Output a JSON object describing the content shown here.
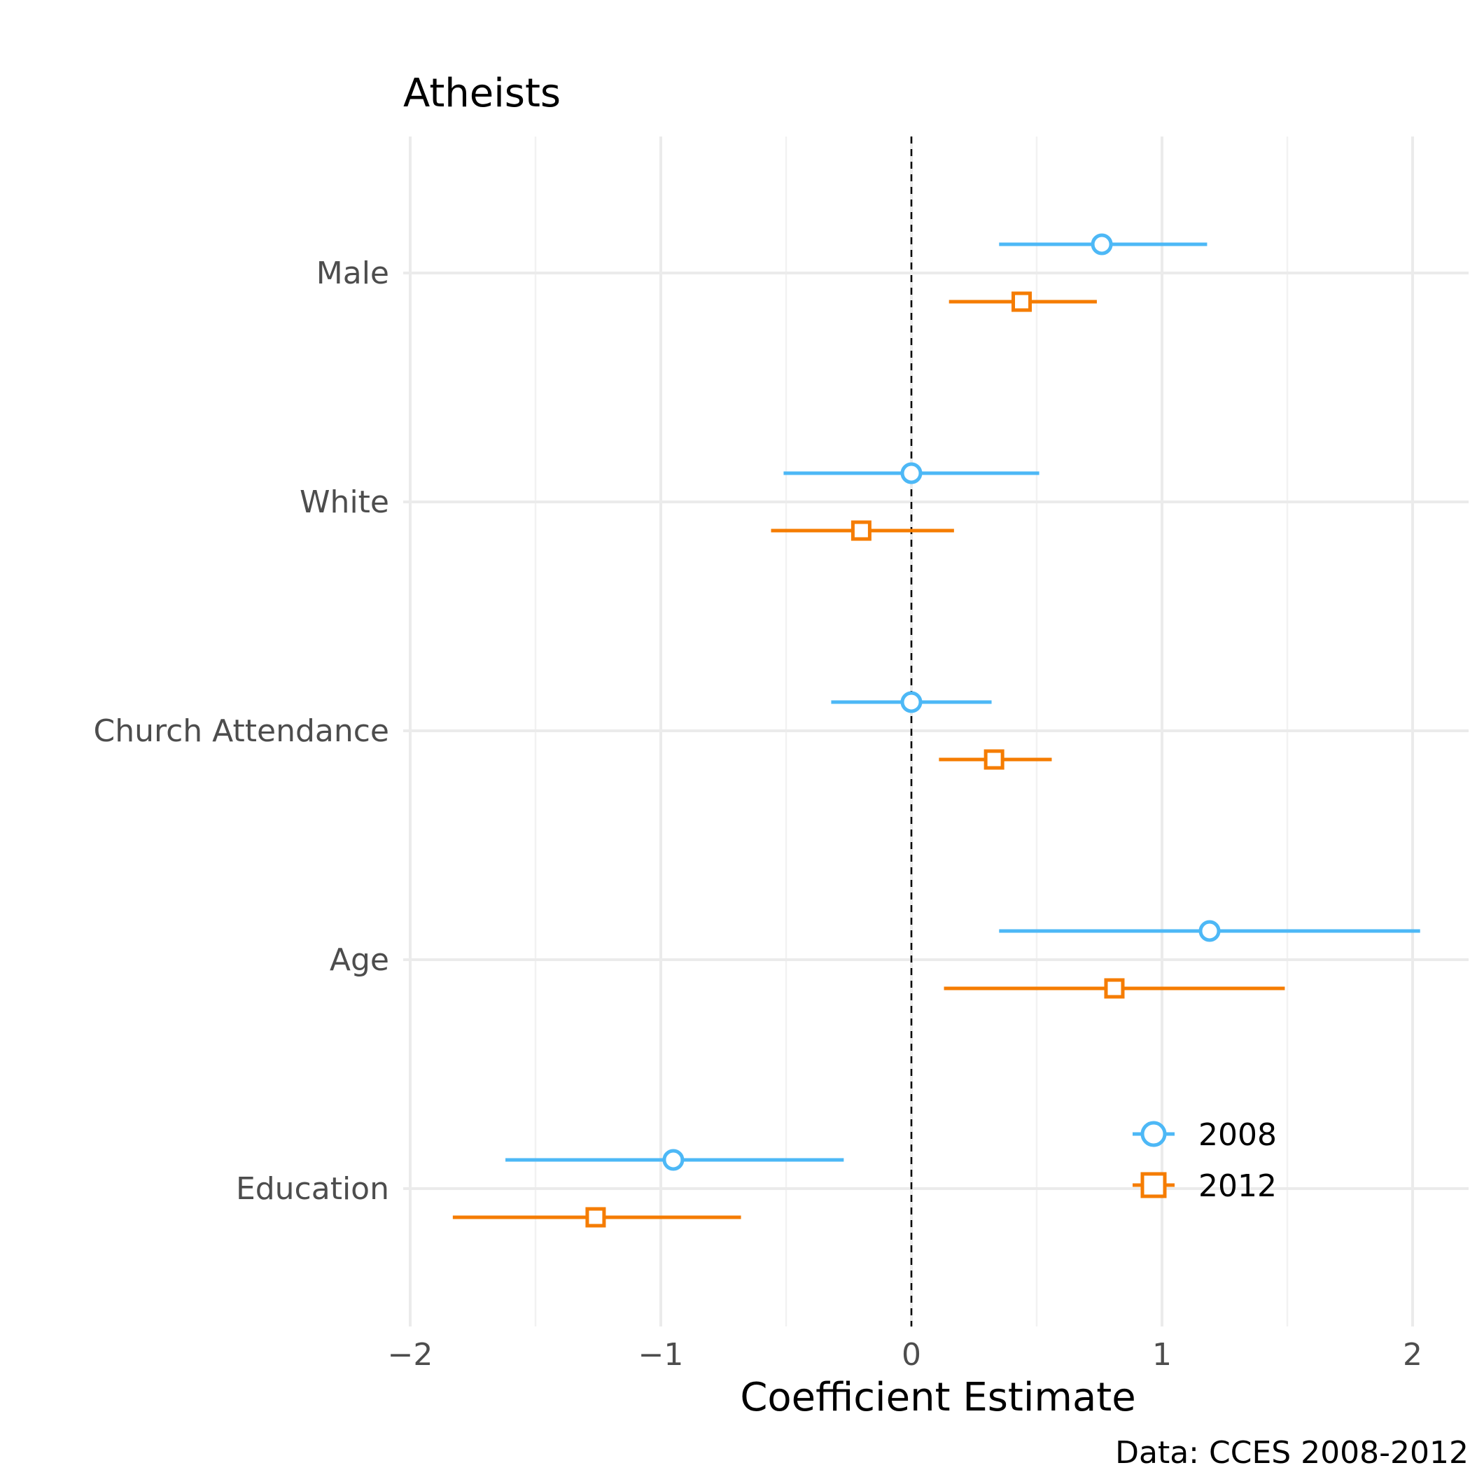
{
  "chart_data": {
    "type": "scatter",
    "title": "Atheists",
    "xlabel": "Coefficient Estimate",
    "ylabel": "",
    "caption": "Data: CCES 2008-2012",
    "xlim": [
      -2,
      2.2
    ],
    "x_ticks": [
      {
        "value": -2,
        "label": "−2"
      },
      {
        "value": -1,
        "label": "−1"
      },
      {
        "value": 0,
        "label": "0"
      },
      {
        "value": 1,
        "label": "1"
      },
      {
        "value": 2,
        "label": "2"
      }
    ],
    "reference_line": 0,
    "grid": true,
    "legend_position": "bottom-right",
    "categories": [
      "Male",
      "White",
      "Church Attendance",
      "Age",
      "Education"
    ],
    "series": [
      {
        "name": "2008",
        "color": "#4db8f6",
        "marker": "circle",
        "points": [
          {
            "category": "Male",
            "estimate": 0.76,
            "lower": 0.35,
            "upper": 1.18
          },
          {
            "category": "White",
            "estimate": 0.0,
            "lower": -0.51,
            "upper": 0.51
          },
          {
            "category": "Church Attendance",
            "estimate": 0.0,
            "lower": -0.32,
            "upper": 0.32
          },
          {
            "category": "Age",
            "estimate": 1.19,
            "lower": 0.35,
            "upper": 2.03
          },
          {
            "category": "Education",
            "estimate": -0.95,
            "lower": -1.62,
            "upper": -0.27
          }
        ]
      },
      {
        "name": "2012",
        "color": "#f57c00",
        "marker": "square",
        "points": [
          {
            "category": "Male",
            "estimate": 0.44,
            "lower": 0.15,
            "upper": 0.74
          },
          {
            "category": "White",
            "estimate": -0.2,
            "lower": -0.56,
            "upper": 0.17
          },
          {
            "category": "Church Attendance",
            "estimate": 0.33,
            "lower": 0.11,
            "upper": 0.56
          },
          {
            "category": "Age",
            "estimate": 0.81,
            "lower": 0.13,
            "upper": 1.49
          },
          {
            "category": "Education",
            "estimate": -1.26,
            "lower": -1.83,
            "upper": -0.68
          }
        ]
      }
    ]
  }
}
